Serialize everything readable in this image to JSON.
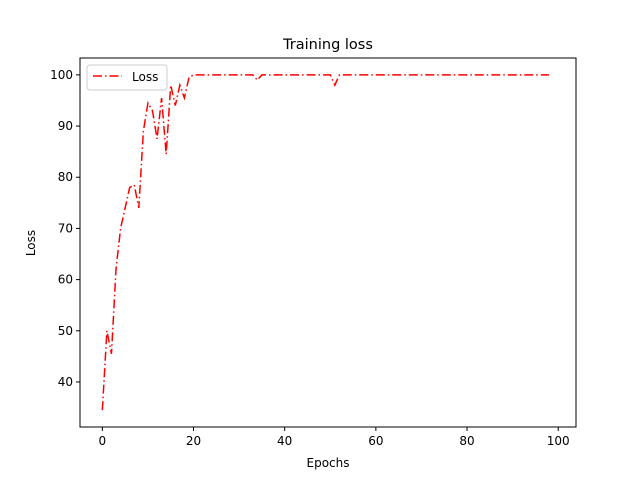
{
  "chart_data": {
    "type": "line",
    "title": "Training loss",
    "xlabel": "Epochs",
    "ylabel": "Loss",
    "xlim": [
      -4.9,
      103.9
    ],
    "ylim": [
      31.2,
      103.3
    ],
    "xticks": [
      0,
      20,
      40,
      60,
      80,
      100
    ],
    "yticks": [
      40,
      50,
      60,
      70,
      80,
      90,
      100
    ],
    "grid": false,
    "legend_position": "upper-left",
    "series": [
      {
        "name": "Loss",
        "color": "#ff0000",
        "line_style": "dashdot",
        "x": [
          0,
          1,
          2,
          3,
          4,
          5,
          6,
          7,
          8,
          9,
          10,
          11,
          12,
          13,
          14,
          15,
          16,
          17,
          18,
          19,
          20,
          21,
          22,
          23,
          24,
          25,
          26,
          27,
          28,
          29,
          30,
          31,
          32,
          33,
          34,
          35,
          36,
          37,
          38,
          39,
          40,
          41,
          42,
          43,
          44,
          45,
          46,
          47,
          48,
          49,
          50,
          51,
          52,
          53,
          54,
          55,
          56,
          57,
          58,
          59,
          60,
          61,
          62,
          63,
          64,
          65,
          66,
          67,
          68,
          69,
          70,
          71,
          72,
          73,
          74,
          75,
          76,
          77,
          78,
          79,
          80,
          81,
          82,
          83,
          84,
          85,
          86,
          87,
          88,
          89,
          90,
          91,
          92,
          93,
          94,
          95,
          96,
          97,
          98
        ],
        "y": [
          34.5,
          50,
          45.5,
          62,
          70,
          74,
          78,
          78.5,
          74,
          89,
          94.5,
          93,
          87.5,
          95.5,
          84.5,
          98,
          94,
          98,
          95.5,
          99.5,
          100,
          100,
          100,
          100,
          100,
          100,
          100,
          100,
          100,
          100,
          100,
          100,
          100,
          100,
          99,
          100,
          100,
          100,
          100,
          100,
          100,
          100,
          100,
          100,
          100,
          100,
          100,
          100,
          100,
          100,
          100,
          98,
          100,
          100,
          100,
          100,
          100,
          100,
          100,
          100,
          100,
          100,
          100,
          100,
          100,
          100,
          100,
          100,
          100,
          100,
          100,
          100,
          100,
          100,
          100,
          100,
          100,
          100,
          100,
          100,
          100,
          100,
          100,
          100,
          100,
          100,
          100,
          100,
          100,
          100,
          100,
          100,
          100,
          100,
          100,
          100,
          100,
          100,
          100
        ]
      }
    ]
  }
}
